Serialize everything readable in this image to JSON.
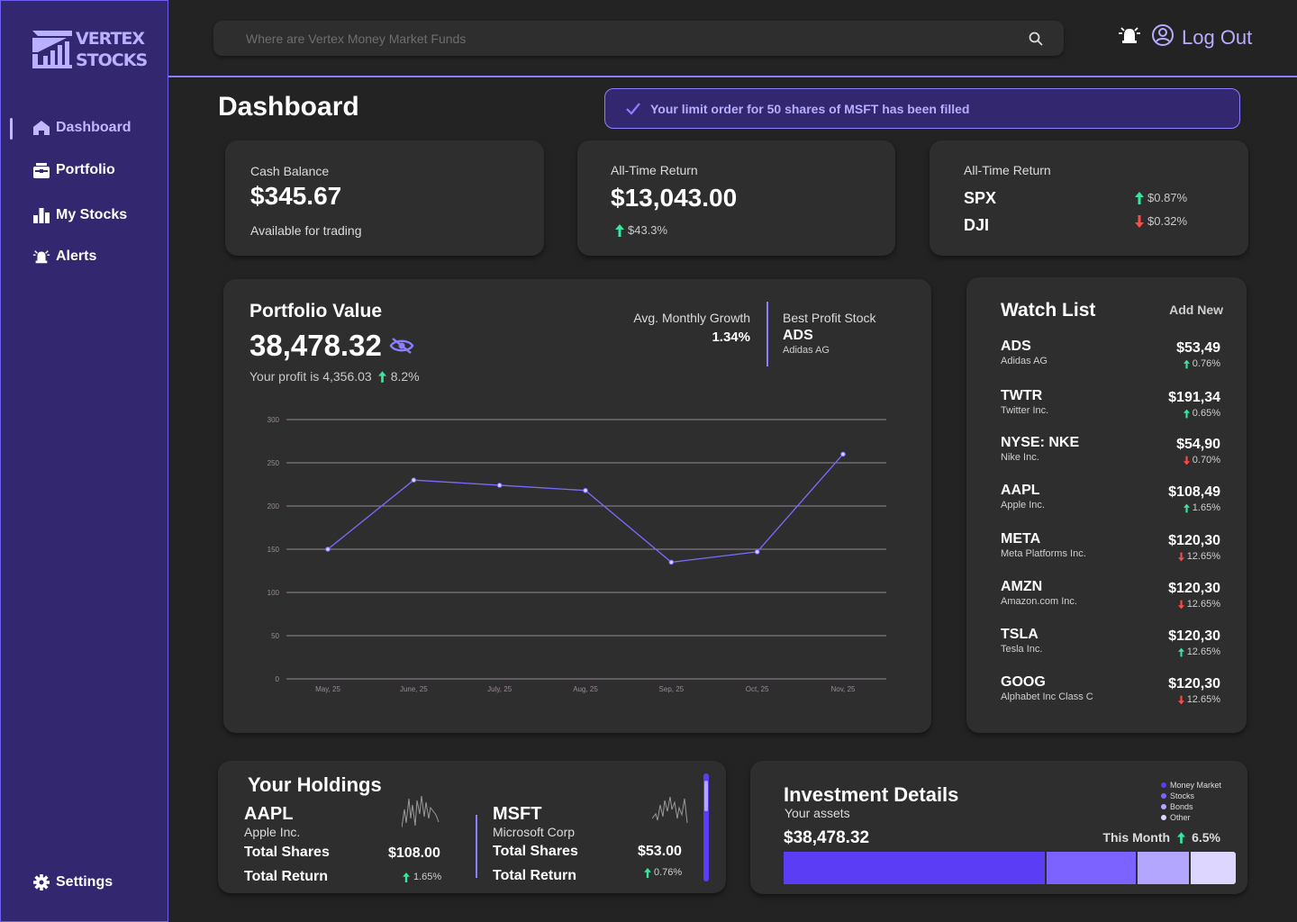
{
  "brand": {
    "line1": "VERTEX",
    "line2": "STOCKS"
  },
  "nav": [
    {
      "label": "Dashboard",
      "icon": "home-icon"
    },
    {
      "label": "Portfolio",
      "icon": "portfolio-icon"
    },
    {
      "label": "My Stocks",
      "icon": "bar-chart-icon"
    },
    {
      "label": "Alerts",
      "icon": "alarm-icon"
    }
  ],
  "settings": {
    "label": "Settings"
  },
  "search": {
    "placeholder": "Where are Vertex Money Market Funds"
  },
  "header": {
    "logout_label": "Log Out",
    "page_title": "Dashboard"
  },
  "toast": {
    "message": "Your limit order for 50 shares of MSFT has been filled"
  },
  "cash": {
    "label": "Cash Balance",
    "value": "$345.67",
    "note": "Available for trading"
  },
  "all_time": {
    "label": "All-Time Return",
    "value": "$13,043.00",
    "change": "$43.3%"
  },
  "indices": {
    "label": "All-Time Return",
    "items": [
      {
        "symbol": "SPX",
        "change": "$0.87%",
        "direction": "up"
      },
      {
        "symbol": "DJI",
        "change": "$0.32%",
        "direction": "down"
      }
    ]
  },
  "portfolio": {
    "title": "Portfolio Value",
    "value": "38,478.32",
    "profit_text": "Your profit is 4,356.03",
    "profit_pct": "8.2%",
    "growth_label": "Avg. Monthly Growth",
    "growth_value": "1.34%",
    "best_label": "Best Profit Stock",
    "best_symbol": "ADS",
    "best_name": "Adidas AG"
  },
  "chart_data": {
    "type": "line",
    "x": [
      "May, 25",
      "June, 25",
      "July, 25",
      "Aug, 25",
      "Sep, 25",
      "Oct, 25",
      "Nov, 25"
    ],
    "y_ticks": [
      0,
      50,
      100,
      150,
      200,
      250,
      300
    ],
    "ylim": [
      0,
      300
    ],
    "series": [
      {
        "values": [
          150,
          230,
          224,
          218,
          135,
          147,
          260
        ]
      }
    ],
    "grid": true,
    "line_color": "#7a6cff"
  },
  "watchlist": {
    "title": "Watch List",
    "add_label": "Add New",
    "items": [
      {
        "symbol": "ADS",
        "name": "Adidas AG",
        "price": "$53,49",
        "change": "0.76%",
        "direction": "up"
      },
      {
        "symbol": "TWTR",
        "name": "Twitter Inc.",
        "price": "$191,34",
        "change": "0.65%",
        "direction": "up"
      },
      {
        "symbol": "NYSE: NKE",
        "name": "Nike Inc.",
        "price": "$54,90",
        "change": "0.70%",
        "direction": "down"
      },
      {
        "symbol": "AAPL",
        "name": "Apple Inc.",
        "price": "$108,49",
        "change": "1.65%",
        "direction": "up"
      },
      {
        "symbol": "META",
        "name": "Meta Platforms Inc.",
        "price": "$120,30",
        "change": "12.65%",
        "direction": "down"
      },
      {
        "symbol": "AMZN",
        "name": "Amazon.com Inc.",
        "price": "$120,30",
        "change": "12.65%",
        "direction": "down"
      },
      {
        "symbol": "TSLA",
        "name": "Tesla Inc.",
        "price": "$120,30",
        "change": "12.65%",
        "direction": "up"
      },
      {
        "symbol": "GOOG",
        "name": "Alphabet Inc Class C",
        "price": "$120,30",
        "change": "12.65%",
        "direction": "down"
      }
    ]
  },
  "holdings": {
    "title": "Your Holdings",
    "items": [
      {
        "symbol": "AAPL",
        "name": "Apple Inc.",
        "shares_label": "Total Shares",
        "shares_value": "$108.00",
        "return_label": "Total Return",
        "return_value": "1.65%"
      },
      {
        "symbol": "MSFT",
        "name": "Microsoft Corp",
        "shares_label": "Total Shares",
        "shares_value": "$53.00",
        "return_label": "Total Return",
        "return_value": "0.76%"
      }
    ]
  },
  "investment": {
    "title": "Investment Details",
    "subtitle": "Your assets",
    "value": "$38,478.32",
    "period_label": "This Month",
    "period_change": "6.5%",
    "legend": [
      {
        "label": "Money Market",
        "color": "#5b3df5"
      },
      {
        "label": "Stocks",
        "color": "#7c63ff"
      },
      {
        "label": "Bonds",
        "color": "#b3a6ff"
      },
      {
        "label": "Other",
        "color": "#ddd6ff"
      }
    ],
    "allocation": [
      0.59,
      0.205,
      0.12,
      0.1
    ]
  }
}
